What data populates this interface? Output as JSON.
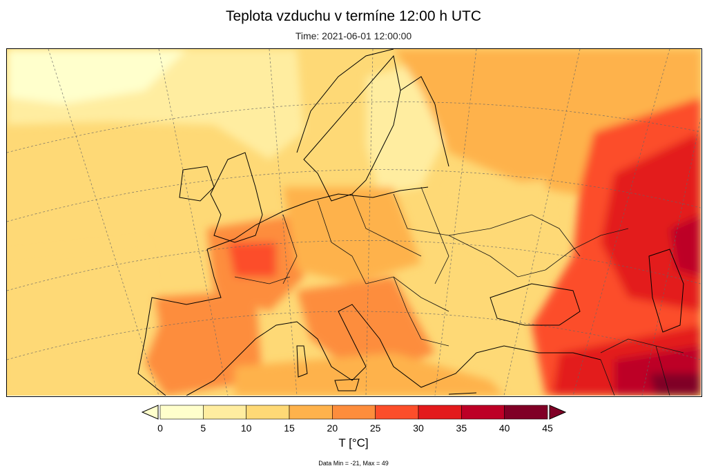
{
  "header": {
    "title": "Teplota vzduchu v termíne 12:00 h UTC",
    "time": "Time: 2021-06-01 12:00:00"
  },
  "colorbar": {
    "label": "T [°C]",
    "ticks": [
      "0",
      "5",
      "10",
      "15",
      "20",
      "25",
      "30",
      "35",
      "40",
      "45"
    ],
    "colors": [
      "#ffffcc",
      "#ffeda0",
      "#fed976",
      "#feb24c",
      "#fd8d3c",
      "#fc4e2a",
      "#e31a1c",
      "#bd0026",
      "#800026"
    ],
    "under_color": "#ffffcc",
    "over_color": "#800026"
  },
  "footer": {
    "data_minmax": "Data Min = -21, Max = 49"
  }
}
